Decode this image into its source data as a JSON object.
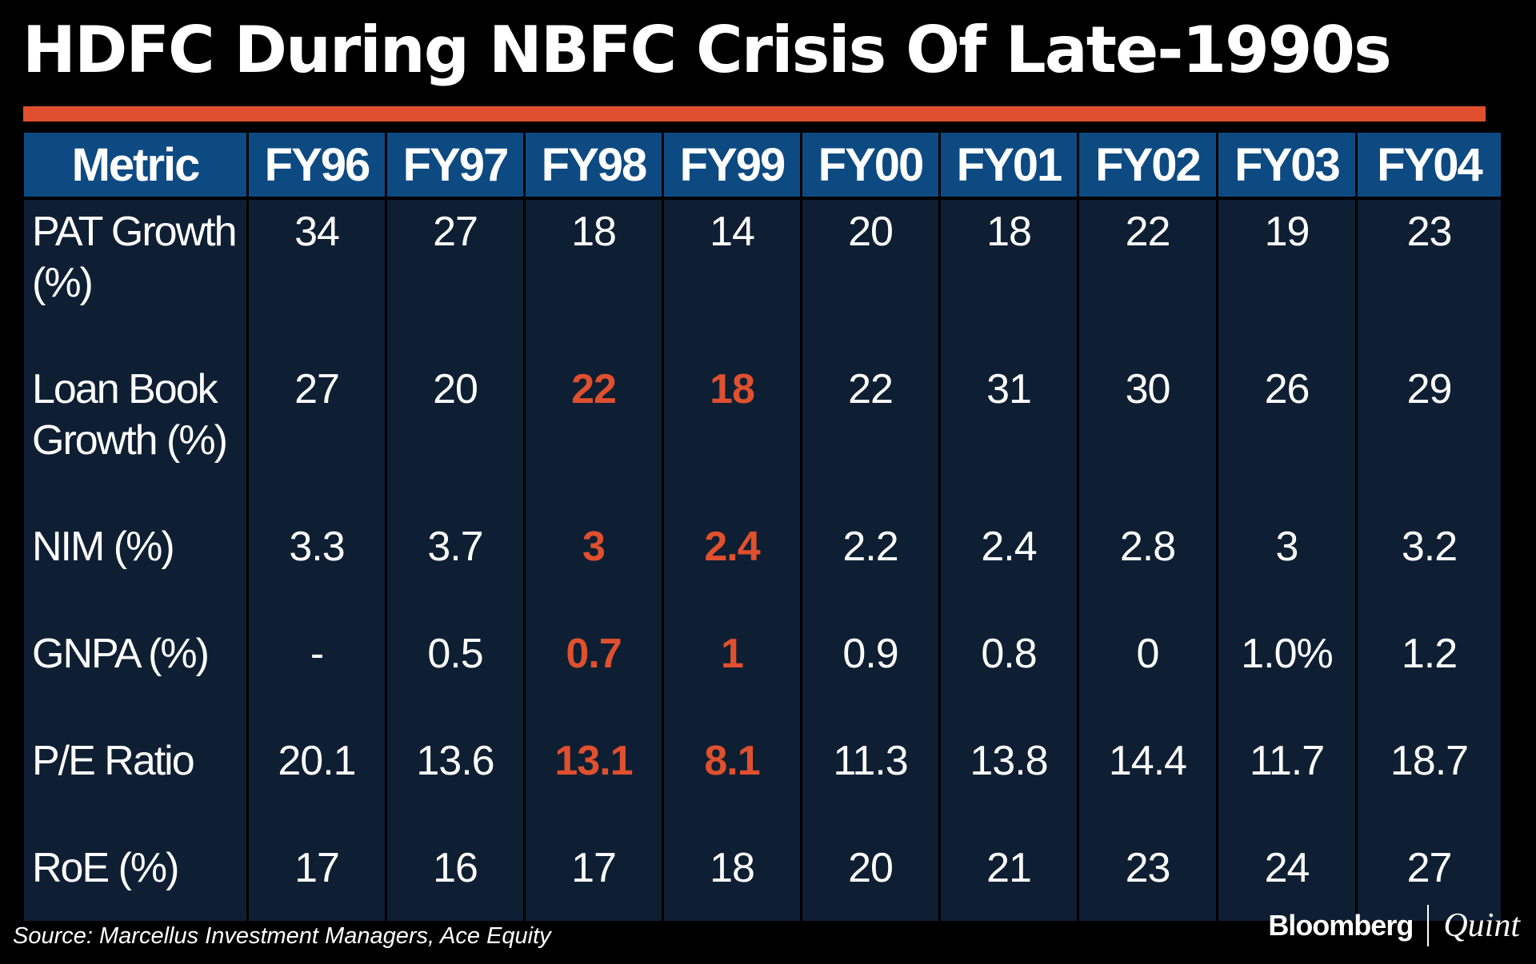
{
  "title": "HDFC During NBFC Crisis Of Late-1990s",
  "colors": {
    "accent": "#e0502e",
    "header_bg": "#0d4a82",
    "cell_bg": "#0f1f33",
    "text": "#ffffff",
    "background": "#000000"
  },
  "chart_data": {
    "type": "table",
    "title": "HDFC During NBFC Crisis Of Late-1990s",
    "columns": [
      "Metric",
      "FY96",
      "FY97",
      "FY98",
      "FY99",
      "FY00",
      "FY01",
      "FY02",
      "FY03",
      "FY04"
    ],
    "rows": [
      {
        "metric": "PAT Growth (%)",
        "values": [
          "34",
          "27",
          "18",
          "14",
          "20",
          "18",
          "22",
          "19",
          "23"
        ],
        "highlight": [
          false,
          false,
          false,
          false,
          false,
          false,
          false,
          false,
          false
        ]
      },
      {
        "metric": "Loan Book Growth (%)",
        "values": [
          "27",
          "20",
          "22",
          "18",
          "22",
          "31",
          "30",
          "26",
          "29"
        ],
        "highlight": [
          false,
          false,
          true,
          true,
          false,
          false,
          false,
          false,
          false
        ]
      },
      {
        "metric": "NIM (%)",
        "values": [
          "3.3",
          "3.7",
          "3",
          "2.4",
          "2.2",
          "2.4",
          "2.8",
          "3",
          "3.2"
        ],
        "highlight": [
          false,
          false,
          true,
          true,
          false,
          false,
          false,
          false,
          false
        ]
      },
      {
        "metric": "GNPA (%)",
        "values": [
          "-",
          "0.5",
          "0.7",
          "1",
          "0.9",
          "0.8",
          "0",
          "1.0%",
          "1.2"
        ],
        "highlight": [
          false,
          false,
          true,
          true,
          false,
          false,
          false,
          false,
          false
        ]
      },
      {
        "metric": "P/E Ratio",
        "values": [
          "20.1",
          "13.6",
          "13.1",
          "8.1",
          "11.3",
          "13.8",
          "14.4",
          "11.7",
          "18.7"
        ],
        "highlight": [
          false,
          false,
          true,
          true,
          false,
          false,
          false,
          false,
          false
        ]
      },
      {
        "metric": "RoE (%)",
        "values": [
          "17",
          "16",
          "17",
          "18",
          "20",
          "21",
          "23",
          "24",
          "27"
        ],
        "highlight": [
          false,
          false,
          false,
          false,
          false,
          false,
          false,
          false,
          false
        ]
      }
    ]
  },
  "source": "Source: Marcellus Investment Managers, Ace Equity",
  "brand": {
    "primary": "Bloomberg",
    "secondary": "Quint"
  }
}
